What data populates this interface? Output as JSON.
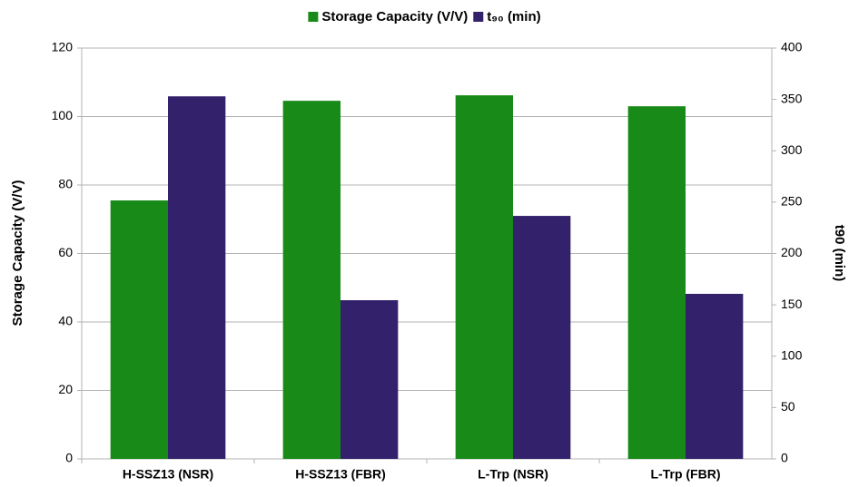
{
  "chart_data": {
    "type": "bar",
    "categories": [
      "H-SSZ13 (NSR)",
      "H-SSZ13 (FBR)",
      "L-Trp (NSR)",
      "L-Trp (FBR)"
    ],
    "series": [
      {
        "name": "Storage Capacity (V/V)",
        "color": "#178a17",
        "values": [
          75.5,
          104.6,
          106.2,
          103
        ]
      },
      {
        "name": "t₉₀ (min)",
        "color": "#33226b",
        "values": [
          353,
          154.5,
          236.6,
          160.7
        ],
        "axis": "y2"
      }
    ],
    "ylabel": "Storage Capacity (V/V)",
    "y2label": "t90 (min)",
    "ylim": [
      0,
      120
    ],
    "yticks": [
      0,
      20,
      40,
      60,
      80,
      100,
      120
    ],
    "y2lim": [
      0,
      400
    ],
    "y2ticks": [
      0,
      50,
      100,
      150,
      200,
      250,
      300,
      350,
      400
    ],
    "grid": true,
    "legend": "top"
  }
}
